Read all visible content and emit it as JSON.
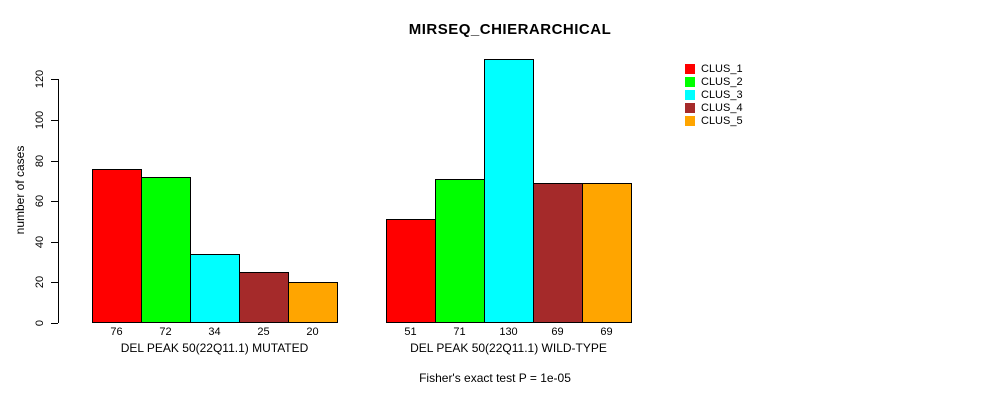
{
  "title": "MIRSEQ_CHIERARCHICAL",
  "chart_data": {
    "type": "bar",
    "title": "MIRSEQ_CHIERARCHICAL",
    "ylabel": "number of cases",
    "xlabel": "",
    "ylim": [
      0,
      130
    ],
    "yticks": [
      0,
      20,
      40,
      60,
      80,
      100,
      120
    ],
    "grid": false,
    "legend_position": "right",
    "bar_value_labels": true,
    "categories": [
      "DEL PEAK 50(22Q11.1) MUTATED",
      "DEL PEAK 50(22Q11.1) WILD-TYPE"
    ],
    "series": [
      {
        "name": "CLUS_1",
        "color": "#FF0000",
        "values": [
          76,
          51
        ]
      },
      {
        "name": "CLUS_2",
        "color": "#00FF00",
        "values": [
          72,
          71
        ]
      },
      {
        "name": "CLUS_3",
        "color": "#00FFFF",
        "values": [
          34,
          130
        ]
      },
      {
        "name": "CLUS_4",
        "color": "#A52A2A",
        "values": [
          25,
          69
        ]
      },
      {
        "name": "CLUS_5",
        "color": "#FFA500",
        "values": [
          20,
          69
        ]
      }
    ],
    "caption": "Fisher's exact test P = 1e-05"
  },
  "legend": {
    "items": [
      {
        "label": "CLUS_1",
        "color": "#FF0000"
      },
      {
        "label": "CLUS_2",
        "color": "#00FF00"
      },
      {
        "label": "CLUS_3",
        "color": "#00FFFF"
      },
      {
        "label": "CLUS_4",
        "color": "#A52A2A"
      },
      {
        "label": "CLUS_5",
        "color": "#FFA500"
      }
    ]
  }
}
